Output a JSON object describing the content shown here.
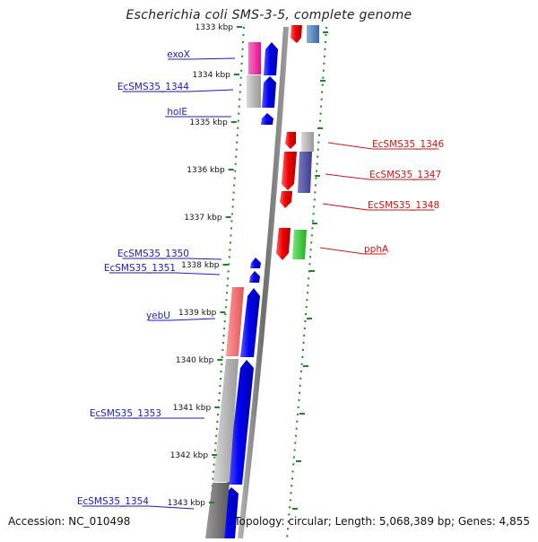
{
  "title": "Escherichia coli SMS-3-5, complete genome",
  "footer": {
    "accession": "Accession: NC_010498",
    "summary": "Topology: circular; Length: 5,068,389 bp; Genes: 4,855"
  },
  "scale": {
    "unit": "kbp",
    "ticks": [
      {
        "kbp": 1333,
        "label": "1333 kbp"
      },
      {
        "kbp": 1334,
        "label": "1334 kbp"
      },
      {
        "kbp": 1335,
        "label": "1335 kbp"
      },
      {
        "kbp": 1336,
        "label": "1336 kbp"
      },
      {
        "kbp": 1337,
        "label": "1337 kbp"
      },
      {
        "kbp": 1338,
        "label": "1338 kbp"
      },
      {
        "kbp": 1339,
        "label": "1339 kbp"
      },
      {
        "kbp": 1340,
        "label": "1340 kbp"
      },
      {
        "kbp": 1341,
        "label": "1341 kbp"
      },
      {
        "kbp": 1342,
        "label": "1342 kbp"
      },
      {
        "kbp": 1343,
        "label": "1343 kbp"
      }
    ]
  },
  "genes": {
    "left": [
      {
        "name": "exoX",
        "color": "#1a1acc"
      },
      {
        "name": "EcSMS35_1344",
        "color": "#1a1acc"
      },
      {
        "name": "holE",
        "color": "#1a1acc"
      },
      {
        "name": "EcSMS35_1350",
        "color": "#1a1acc"
      },
      {
        "name": "EcSMS35_1351",
        "color": "#1a1acc"
      },
      {
        "name": "yebU",
        "color": "#1a1acc"
      },
      {
        "name": "EcSMS35_1353",
        "color": "#1a1acc"
      },
      {
        "name": "EcSMS35_1354",
        "color": "#1a1acc"
      }
    ],
    "right": [
      {
        "name": "EcSMS35_1346",
        "color": "#dd1111"
      },
      {
        "name": "EcSMS35_1347",
        "color": "#dd1111"
      },
      {
        "name": "EcSMS35_1348",
        "color": "#dd1111"
      },
      {
        "name": "pphA",
        "color": "#dd1111"
      }
    ]
  },
  "colors": {
    "forward_strand": "#1414e6",
    "reverse_strand": "#e61414",
    "tick": "#1a8a1a",
    "backbone": "#888888"
  }
}
